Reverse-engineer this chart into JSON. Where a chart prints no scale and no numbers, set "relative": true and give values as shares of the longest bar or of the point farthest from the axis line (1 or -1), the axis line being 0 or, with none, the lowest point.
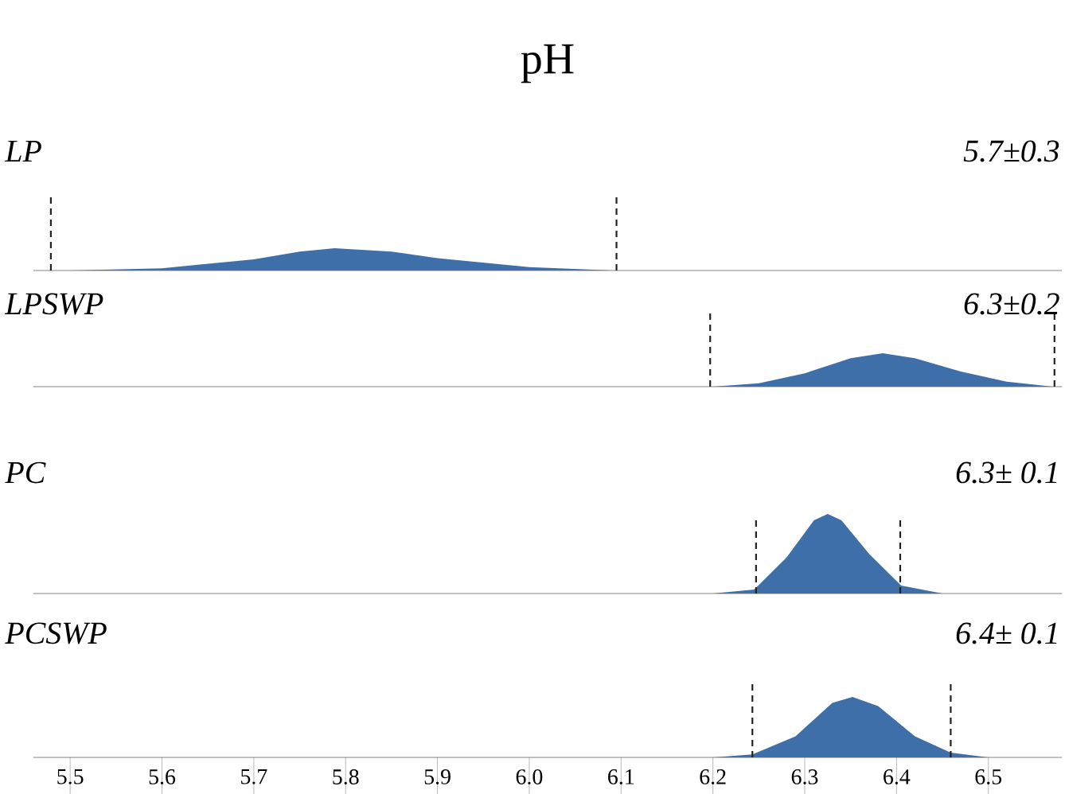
{
  "chart_data": [
    {
      "type": "area",
      "title": "pH",
      "relative": true,
      "xlim": [
        5.46,
        6.58
      ],
      "tick_labels": false,
      "annotations": [
        "5.7±0.3"
      ],
      "series": [
        {
          "name": "LP",
          "color": "#3f6fa8",
          "x": [
            5.5,
            5.6,
            5.7,
            5.75,
            5.788,
            5.85,
            5.9,
            6.0,
            6.09
          ],
          "values": [
            0,
            0.1,
            0.5,
            0.85,
            1,
            0.85,
            0.55,
            0.15,
            0
          ]
        }
      ],
      "ref_lines": [
        {
          "axis": "x",
          "value": 5.479,
          "line_style": "dashed",
          "color": "#222222"
        },
        {
          "axis": "x",
          "value": 6.095,
          "line_style": "dashed",
          "color": "#222222"
        }
      ]
    },
    {
      "type": "area",
      "relative": true,
      "xlim": [
        5.46,
        6.58
      ],
      "tick_labels": false,
      "annotations": [
        "6.3±0.2"
      ],
      "series": [
        {
          "name": "LPSWP",
          "color": "#3f6fa8",
          "x": [
            6.2,
            6.25,
            6.3,
            6.35,
            6.385,
            6.42,
            6.47,
            6.52,
            6.57
          ],
          "values": [
            0,
            0.1,
            0.4,
            0.85,
            1,
            0.85,
            0.45,
            0.15,
            0
          ]
        }
      ],
      "ref_lines": [
        {
          "axis": "x",
          "value": 6.197,
          "line_style": "dashed",
          "color": "#222222"
        },
        {
          "axis": "x",
          "value": 6.572,
          "line_style": "dashed",
          "color": "#222222"
        }
      ]
    },
    {
      "type": "area",
      "relative": true,
      "xlim": [
        5.46,
        6.58
      ],
      "tick_labels": false,
      "annotations": [
        "6.3± 0.1"
      ],
      "series": [
        {
          "name": "PC",
          "color": "#3f6fa8",
          "x": [
            6.2,
            6.245,
            6.28,
            6.31,
            6.325,
            6.34,
            6.37,
            6.405,
            6.45
          ],
          "values": [
            0,
            0.05,
            0.45,
            0.92,
            1,
            0.92,
            0.5,
            0.1,
            0
          ]
        }
      ],
      "ref_lines": [
        {
          "axis": "x",
          "value": 6.247,
          "line_style": "dashed",
          "color": "#222222"
        },
        {
          "axis": "x",
          "value": 6.404,
          "line_style": "dashed",
          "color": "#222222"
        }
      ]
    },
    {
      "type": "area",
      "relative": true,
      "xlim": [
        5.46,
        6.58
      ],
      "annotations": [
        "6.4± 0.1"
      ],
      "xticks": [
        5.5,
        5.6,
        5.7,
        5.8,
        5.9,
        {
          "value": 6.0,
          "label": "6.0"
        },
        6.1,
        6.2,
        6.3,
        6.4,
        6.5
      ],
      "series": [
        {
          "name": "PCSWP",
          "color": "#3f6fa8",
          "x": [
            6.2,
            6.243,
            6.29,
            6.33,
            6.352,
            6.38,
            6.42,
            6.459,
            6.5
          ],
          "values": [
            0,
            0.05,
            0.35,
            0.9,
            1,
            0.85,
            0.35,
            0.08,
            0
          ]
        }
      ],
      "ref_lines": [
        {
          "axis": "x",
          "value": 6.243,
          "line_style": "dashed",
          "color": "#222222"
        },
        {
          "axis": "x",
          "value": 6.459,
          "line_style": "dashed",
          "color": "#222222"
        }
      ]
    }
  ]
}
